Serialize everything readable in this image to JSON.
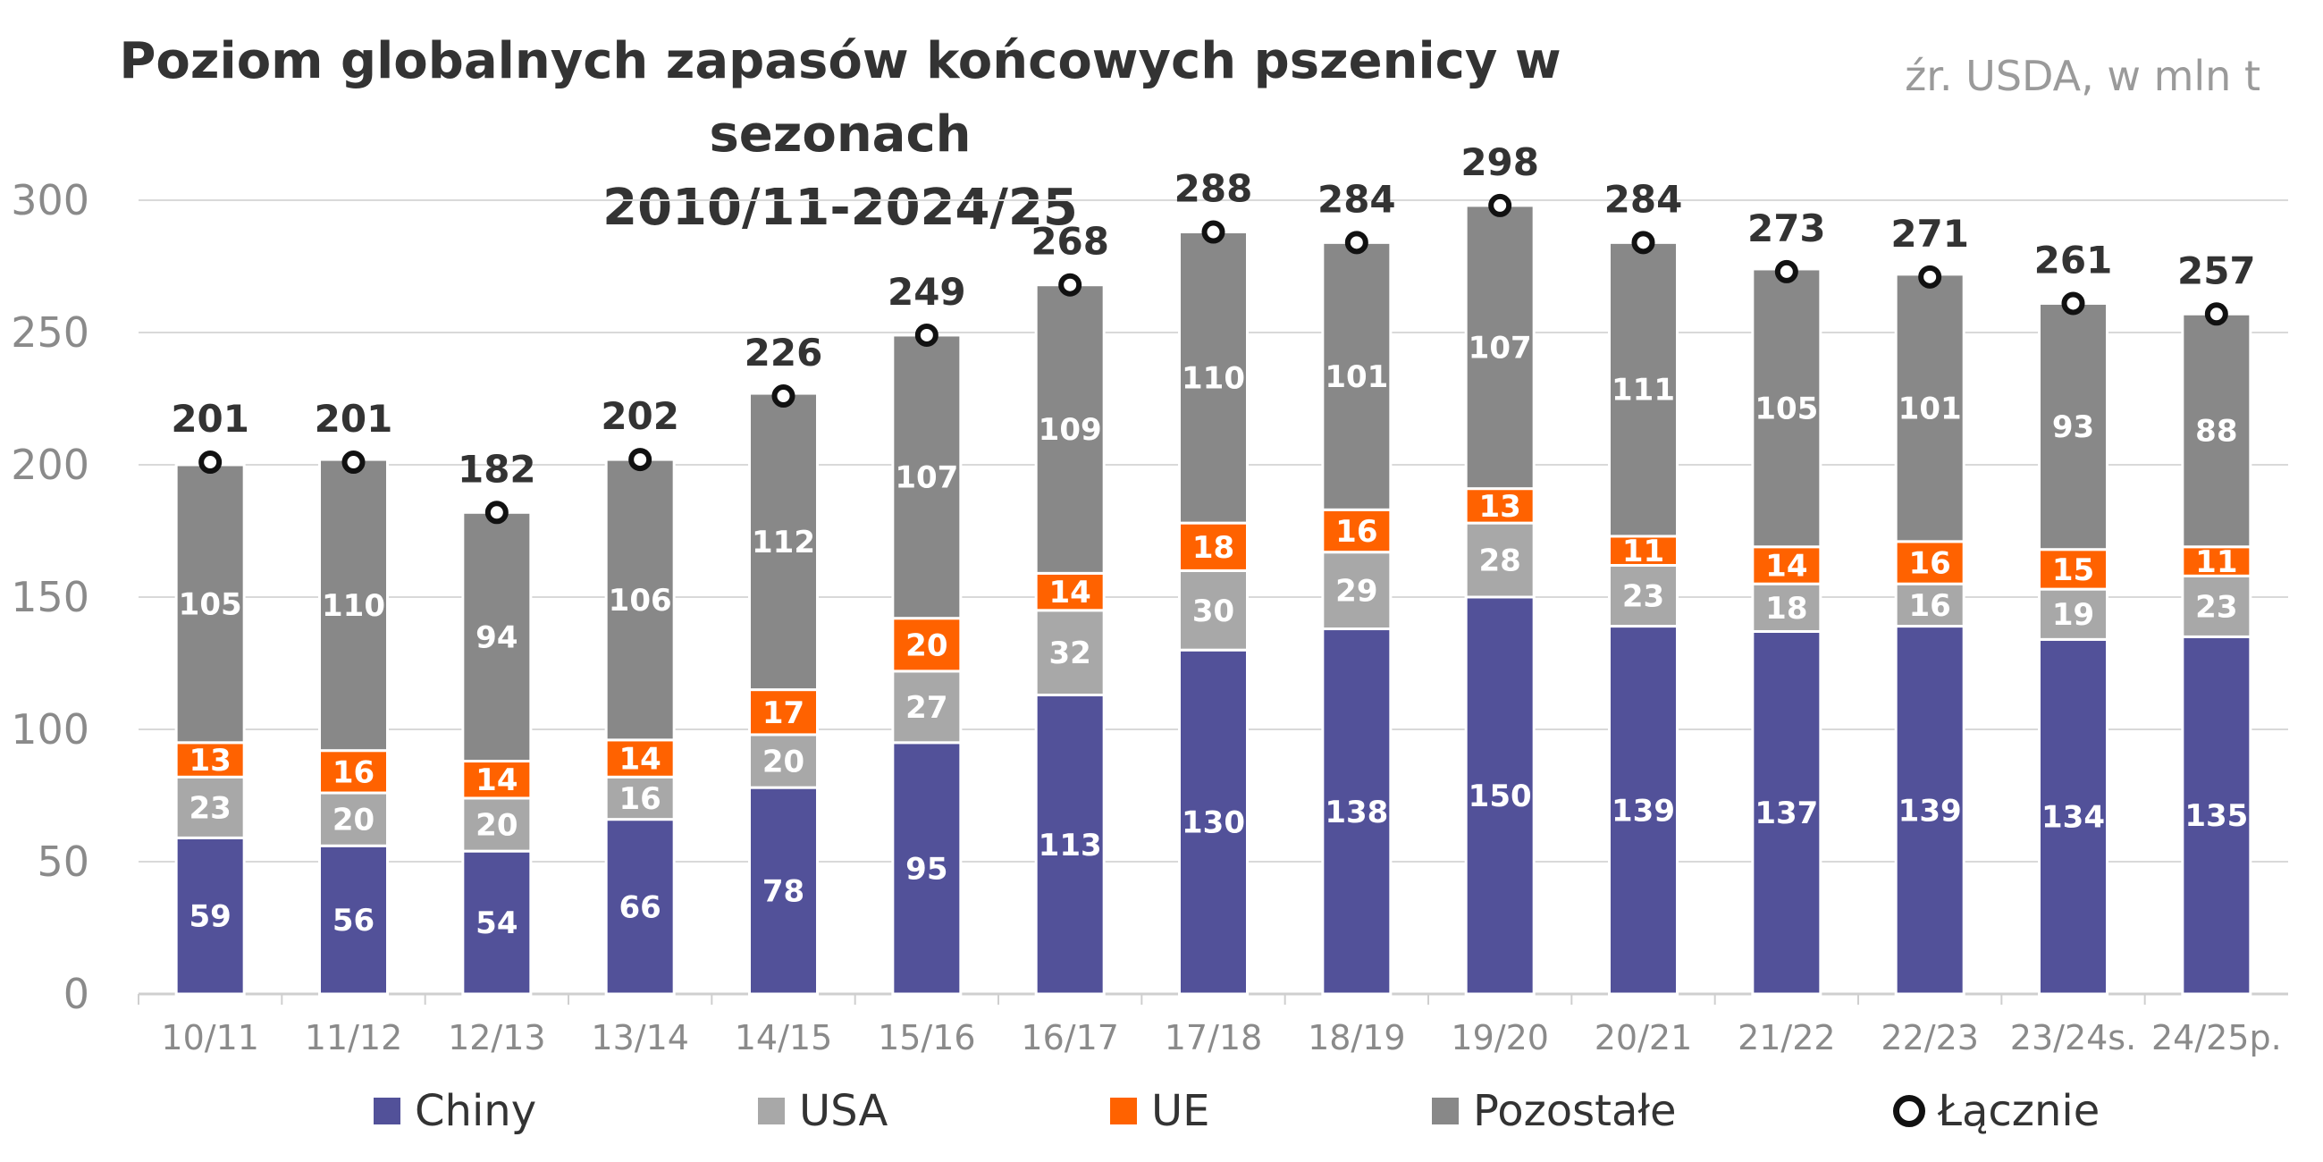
{
  "title_line1": "Poziom globalnych zapasów końcowych pszenicy w sezonach",
  "title_line2": "2010/11-2024/25",
  "source": "źr. USDA, w mln t",
  "colors": {
    "Chiny": "#525199",
    "USA": "#a8a8a8",
    "UE": "#ff6200",
    "Pozostałe": "#888888",
    "Łącznie": "#111111",
    "grid": "#d9d9d9",
    "axis_text": "#8a8a8a",
    "label_text": "#333333"
  },
  "chart_data": {
    "type": "bar",
    "stacked": true,
    "categories": [
      "10/11",
      "11/12",
      "12/13",
      "13/14",
      "14/15",
      "15/16",
      "16/17",
      "17/18",
      "18/19",
      "19/20",
      "20/21",
      "21/22",
      "22/23",
      "23/24s.",
      "24/25p."
    ],
    "series": [
      {
        "name": "Chiny",
        "values": [
          59,
          56,
          54,
          66,
          78,
          95,
          113,
          130,
          138,
          150,
          139,
          137,
          139,
          134,
          135
        ]
      },
      {
        "name": "USA",
        "values": [
          23,
          20,
          20,
          16,
          20,
          27,
          32,
          30,
          29,
          28,
          23,
          18,
          16,
          19,
          23
        ]
      },
      {
        "name": "UE",
        "values": [
          13,
          16,
          14,
          14,
          17,
          20,
          14,
          18,
          16,
          13,
          11,
          14,
          16,
          15,
          11
        ]
      },
      {
        "name": "Pozostałe",
        "values": [
          105,
          110,
          94,
          106,
          112,
          107,
          109,
          110,
          101,
          107,
          111,
          105,
          101,
          93,
          88
        ]
      }
    ],
    "totals": {
      "name": "Łącznie",
      "type": "scatter",
      "values": [
        201,
        201,
        182,
        202,
        226,
        249,
        268,
        288,
        284,
        298,
        284,
        273,
        271,
        261,
        257
      ]
    },
    "ylim": [
      0,
      300
    ],
    "yticks": [
      0,
      50,
      100,
      150,
      200,
      250,
      300
    ],
    "grid": true,
    "legend_position": "bottom"
  }
}
